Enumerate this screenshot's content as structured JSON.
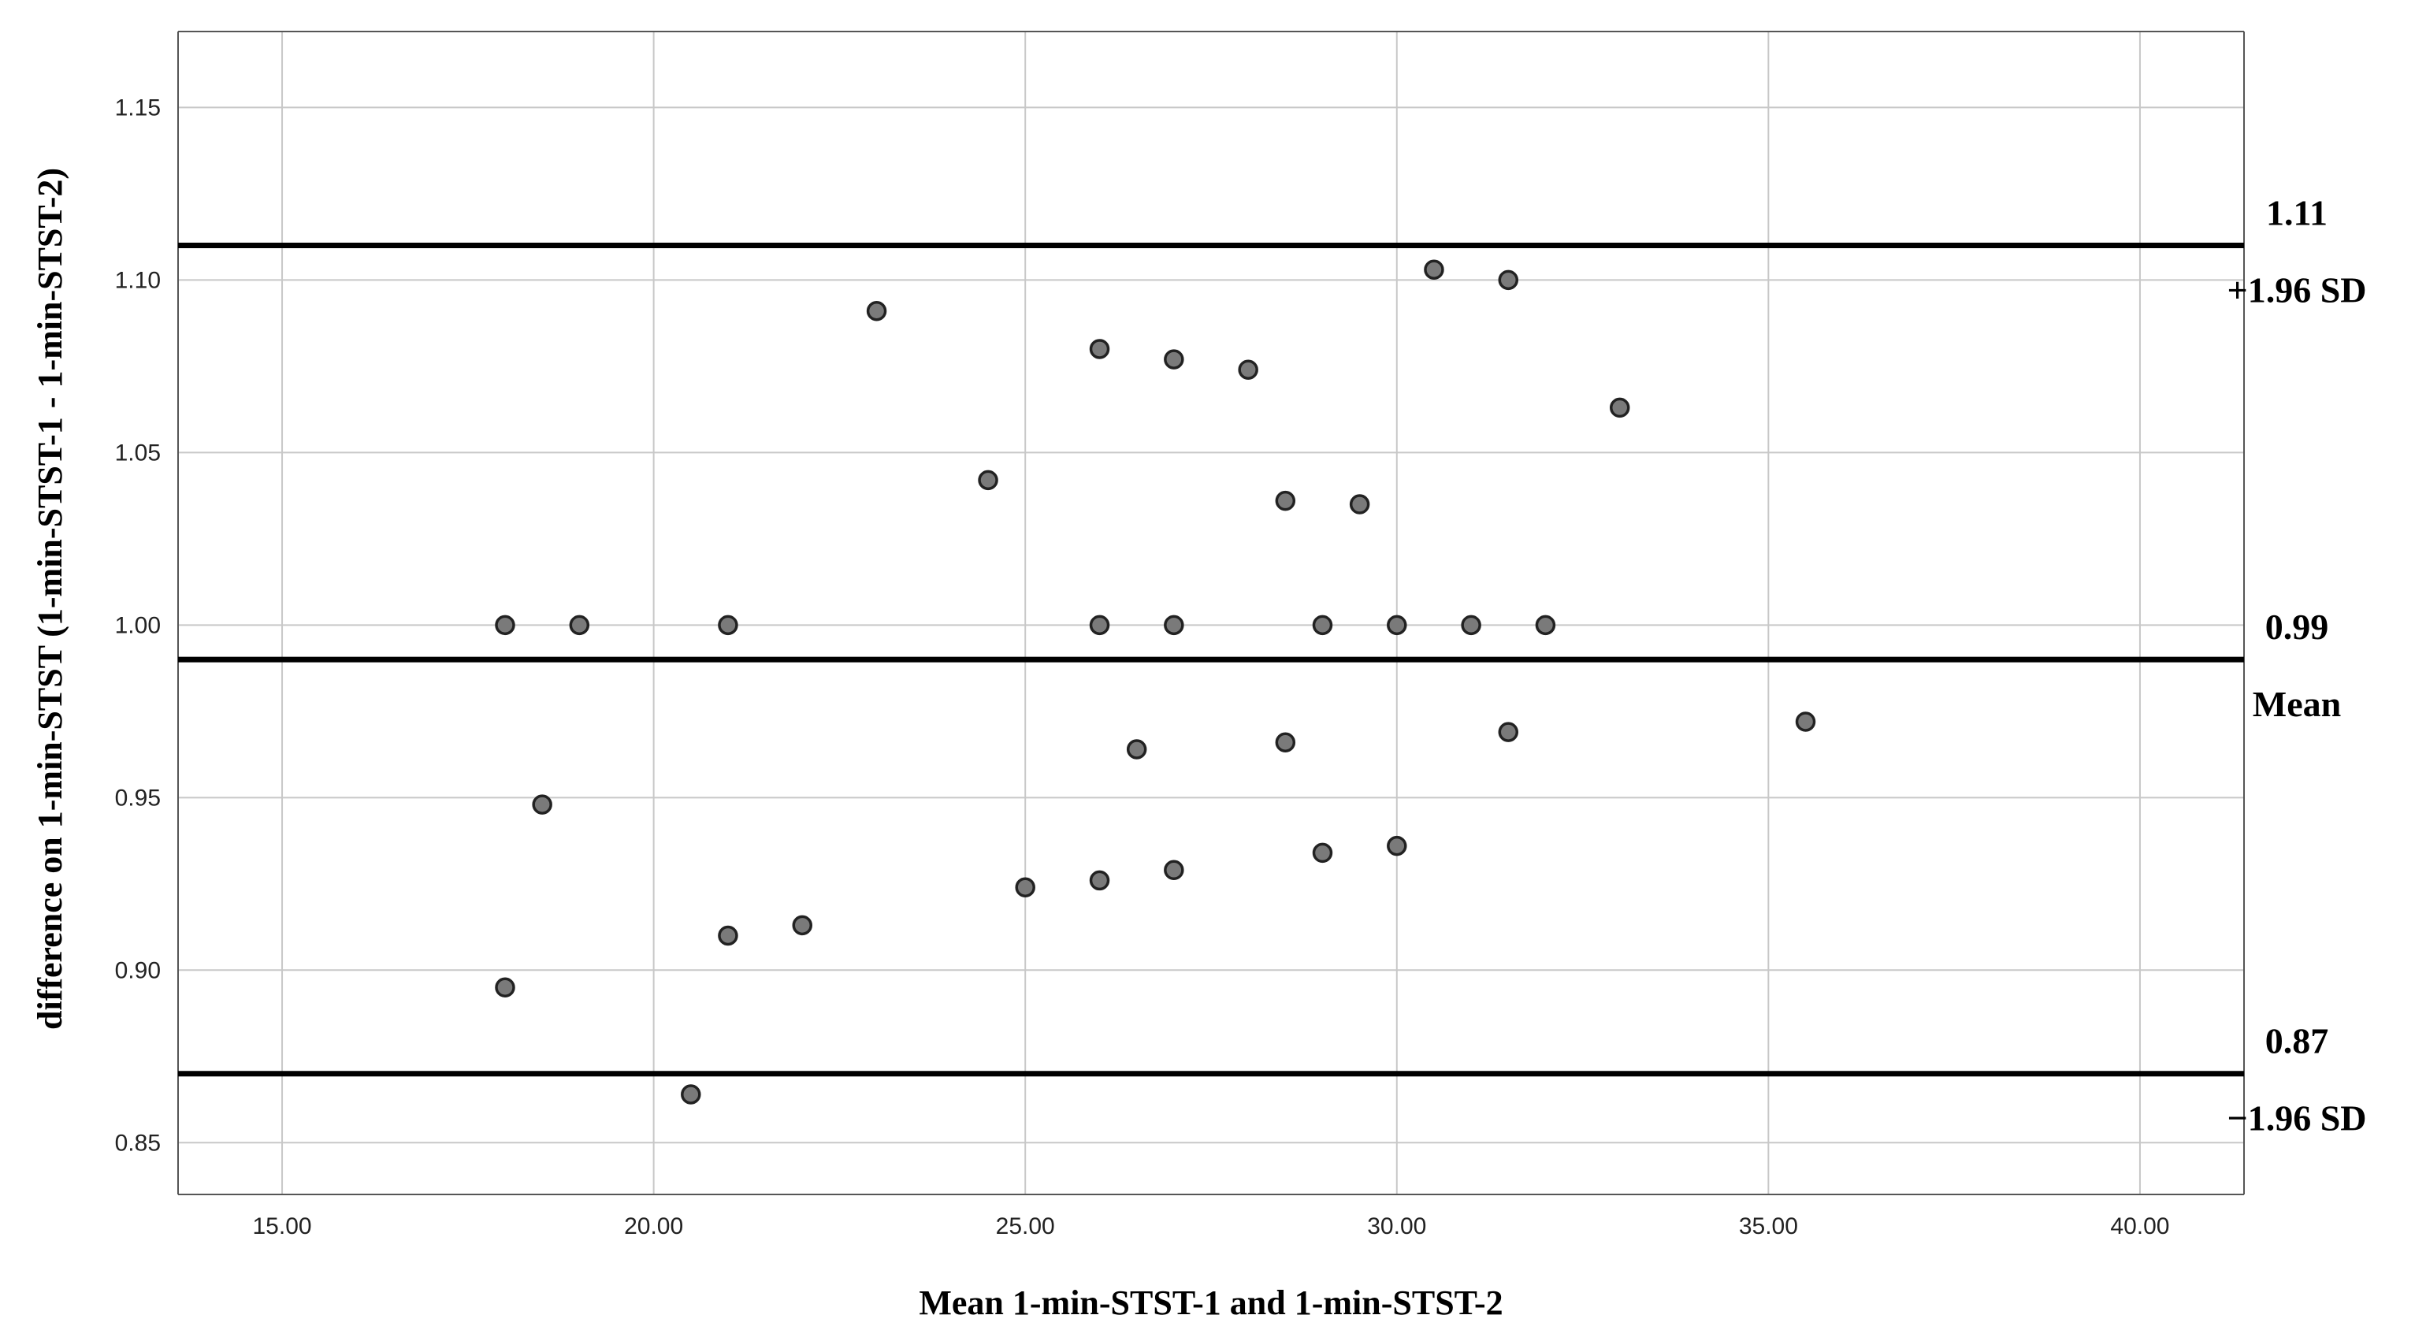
{
  "chart_data": {
    "type": "scatter",
    "title": "",
    "xlabel": "Mean 1-min-STST-1 and 1-min-STST-2",
    "ylabel": "difference on 1-min-STST (1-min-STST-1 - 1-min-STST-2)",
    "xlim": [
      13.6,
      41.4
    ],
    "ylim": [
      0.835,
      1.172
    ],
    "xticks": [
      15,
      20,
      25,
      30,
      35,
      40
    ],
    "xtick_labels": [
      "15.00",
      "20.00",
      "25.00",
      "30.00",
      "35.00",
      "40.00"
    ],
    "yticks": [
      0.85,
      0.9,
      0.95,
      1.0,
      1.05,
      1.1,
      1.15
    ],
    "ytick_labels": [
      "0.85",
      "0.90",
      "0.95",
      "1.00",
      "1.05",
      "1.10",
      "1.15"
    ],
    "grid": true,
    "points": [
      {
        "x": 23.0,
        "y": 1.091
      },
      {
        "x": 30.5,
        "y": 1.103
      },
      {
        "x": 31.5,
        "y": 1.1
      },
      {
        "x": 26.0,
        "y": 1.08
      },
      {
        "x": 27.0,
        "y": 1.077
      },
      {
        "x": 28.0,
        "y": 1.074
      },
      {
        "x": 33.0,
        "y": 1.063
      },
      {
        "x": 24.5,
        "y": 1.042
      },
      {
        "x": 28.5,
        "y": 1.036
      },
      {
        "x": 29.5,
        "y": 1.035
      },
      {
        "x": 18.0,
        "y": 1.0
      },
      {
        "x": 19.0,
        "y": 1.0
      },
      {
        "x": 21.0,
        "y": 1.0
      },
      {
        "x": 26.0,
        "y": 1.0
      },
      {
        "x": 27.0,
        "y": 1.0
      },
      {
        "x": 29.0,
        "y": 1.0
      },
      {
        "x": 30.0,
        "y": 1.0
      },
      {
        "x": 31.0,
        "y": 1.0
      },
      {
        "x": 32.0,
        "y": 1.0
      },
      {
        "x": 26.5,
        "y": 0.964
      },
      {
        "x": 28.5,
        "y": 0.966
      },
      {
        "x": 31.5,
        "y": 0.969
      },
      {
        "x": 35.5,
        "y": 0.972
      },
      {
        "x": 18.5,
        "y": 0.948
      },
      {
        "x": 30.0,
        "y": 0.936
      },
      {
        "x": 29.0,
        "y": 0.934
      },
      {
        "x": 27.0,
        "y": 0.929
      },
      {
        "x": 26.0,
        "y": 0.926
      },
      {
        "x": 25.0,
        "y": 0.924
      },
      {
        "x": 22.0,
        "y": 0.913
      },
      {
        "x": 21.0,
        "y": 0.91
      },
      {
        "x": 18.0,
        "y": 0.895
      },
      {
        "x": 20.5,
        "y": 0.864
      }
    ],
    "reference_lines": [
      {
        "y": 1.11,
        "value_label": "1.11",
        "name": "+1.96 SD"
      },
      {
        "y": 0.99,
        "value_label": "0.99",
        "name": "Mean"
      },
      {
        "y": 0.87,
        "value_label": "0.87",
        "name": "−1.96 SD"
      }
    ],
    "colors": {
      "point_fill": "#7a7a7a",
      "point_stroke": "#222222",
      "grid": "#c8c8c8",
      "axis": "#555555",
      "reference_line": "#000000"
    }
  }
}
